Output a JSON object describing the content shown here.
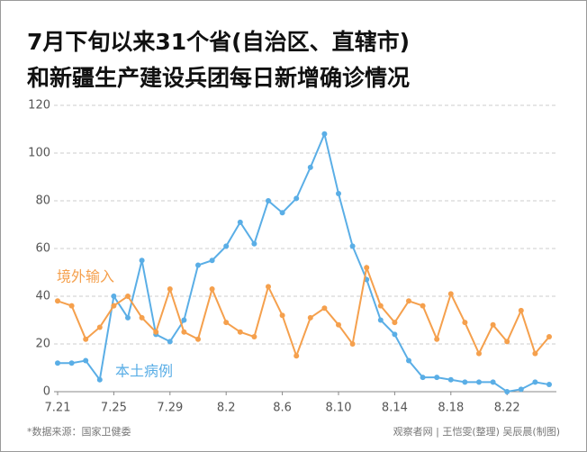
{
  "chart_data": {
    "type": "line",
    "title": [
      "7月下旬以来31个省(自治区、直辖市)",
      "和新疆生产建设兵团每日新增确诊情况"
    ],
    "categories": [
      "7.21",
      null,
      null,
      null,
      "7.25",
      null,
      null,
      null,
      "7.29",
      null,
      null,
      null,
      "8.2",
      null,
      null,
      null,
      "8.6",
      null,
      null,
      null,
      "8.10",
      null,
      null,
      null,
      "8.14",
      null,
      null,
      null,
      "8.18",
      null,
      null,
      null,
      "8.22",
      null,
      null,
      null
    ],
    "series": [
      {
        "name": "本土病例",
        "color": "#5aaee6",
        "values": [
          12,
          12,
          13,
          5,
          40,
          31,
          55,
          24,
          21,
          30,
          53,
          55,
          61,
          71,
          62,
          80,
          75,
          81,
          94,
          108,
          83,
          61,
          47,
          30,
          24,
          13,
          6,
          6,
          5,
          4,
          4,
          4,
          0,
          1,
          4,
          3
        ]
      },
      {
        "name": "境外输入",
        "color": "#f5a04d",
        "values": [
          38,
          36,
          22,
          27,
          36,
          40,
          31,
          25,
          43,
          25,
          22,
          43,
          29,
          25,
          23,
          44,
          32,
          15,
          31,
          35,
          28,
          20,
          52,
          36,
          29,
          38,
          36,
          22,
          41,
          29,
          16,
          28,
          21,
          34,
          16,
          23
        ]
      }
    ],
    "ylim": [
      0,
      120
    ],
    "yticks": [
      0,
      20,
      40,
      60,
      80,
      100,
      120
    ],
    "grid": true,
    "source": "*数据来源：国家卫健委",
    "credit": "观察者网 | 王恺雯(整理) 吴辰晨(制图)"
  }
}
